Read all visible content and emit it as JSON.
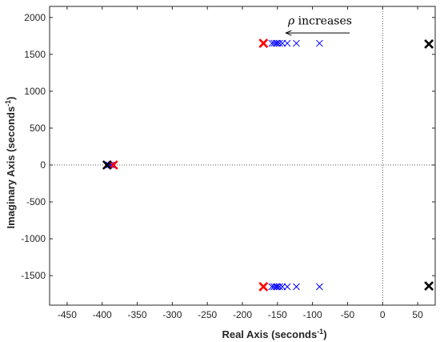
{
  "chart_data": {
    "type": "scatter",
    "title": "",
    "xlabel": "Real Axis (seconds",
    "xlabel_sup": "-1",
    "xlabel_close": ")",
    "ylabel": "Imaginary Axis (seconds",
    "ylabel_sup": "-1",
    "ylabel_close": ")",
    "xlim": [
      -475,
      75
    ],
    "ylim": [
      -1900,
      2150
    ],
    "xticks": [
      -450,
      -400,
      -350,
      -300,
      -250,
      -200,
      -150,
      -100,
      -50,
      0,
      50
    ],
    "yticks": [
      -1500,
      -1000,
      -500,
      0,
      500,
      1000,
      1500,
      2000
    ],
    "grid": false,
    "reference_lines": {
      "x0": true,
      "y0": true,
      "style": "dotted"
    },
    "marker": "x",
    "series": [
      {
        "color": "#0000ff",
        "marker_size": 4,
        "points": [
          [
            -158,
            1650
          ],
          [
            -155,
            1650
          ],
          [
            -152,
            1650
          ],
          [
            -150,
            1650
          ],
          [
            -147,
            1650
          ],
          [
            -143,
            1650
          ],
          [
            -136,
            1650
          ],
          [
            -123,
            1650
          ],
          [
            -90,
            1650
          ],
          [
            -158,
            -1650
          ],
          [
            -155,
            -1650
          ],
          [
            -152,
            -1650
          ],
          [
            -150,
            -1650
          ],
          [
            -147,
            -1650
          ],
          [
            -143,
            -1650
          ],
          [
            -136,
            -1650
          ],
          [
            -123,
            -1650
          ],
          [
            -90,
            -1650
          ],
          [
            -390,
            0
          ],
          [
            -387,
            0
          ]
        ]
      },
      {
        "color": "#ff0000",
        "marker_size": 5,
        "bold": true,
        "points": [
          [
            -170,
            1650
          ],
          [
            -170,
            -1650
          ],
          [
            -384,
            0
          ]
        ]
      },
      {
        "color": "#000000",
        "marker_size": 5,
        "bold": true,
        "points": [
          [
            -393,
            0
          ],
          [
            66,
            1640
          ],
          [
            66,
            -1640
          ]
        ]
      }
    ],
    "annotation": {
      "symbol": "ρ",
      "text": " increases",
      "arrow_from": [
        -47,
        1790
      ],
      "arrow_to": [
        -138,
        1790
      ],
      "text_x": -135,
      "text_y": 1905
    }
  }
}
